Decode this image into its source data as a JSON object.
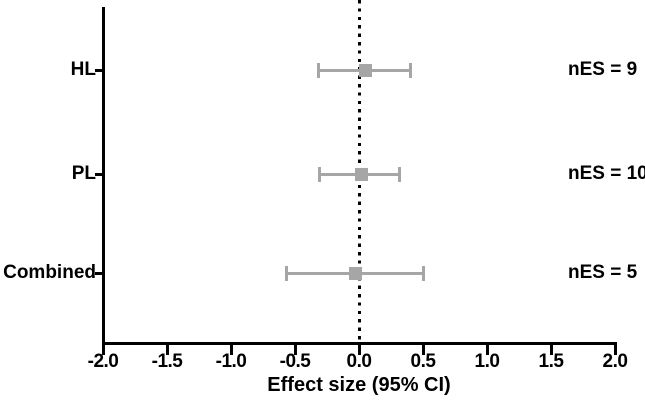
{
  "figure": {
    "background": "#ffffff",
    "text_color": "#000000"
  },
  "chart_data": {
    "type": "scatter",
    "subtype": "forest-plot",
    "title": "",
    "xlabel": "Effect size (95% CI)",
    "ylabel": "",
    "xlim": [
      -2.0,
      2.0
    ],
    "xticks": [
      -2.0,
      -1.5,
      -1.0,
      -0.5,
      0.0,
      0.5,
      1.0,
      1.5,
      2.0
    ],
    "xtick_labels": [
      "-2.0",
      "-1.5",
      "-1.0",
      "-0.5",
      "0.0",
      "0.5",
      "1.0",
      "1.5",
      "2.0"
    ],
    "grid": "off",
    "legend": "none",
    "reference_line": {
      "x": 0.0,
      "style": "dotted",
      "color": "#000000"
    },
    "rows": [
      {
        "label": "HL",
        "mean": 0.05,
        "ci_low": -0.32,
        "ci_high": 0.4,
        "annotation": "nES = 9"
      },
      {
        "label": "PL",
        "mean": 0.02,
        "ci_low": -0.31,
        "ci_high": 0.32,
        "annotation": "nES = 10"
      },
      {
        "label": "Combined",
        "mean": -0.03,
        "ci_low": -0.57,
        "ci_high": 0.5,
        "annotation": "nES = 5"
      }
    ],
    "marker": {
      "shape": "square",
      "color": "#a6a6a6"
    },
    "errorbar_color": "#a6a6a6",
    "axis_color": "#000000"
  }
}
